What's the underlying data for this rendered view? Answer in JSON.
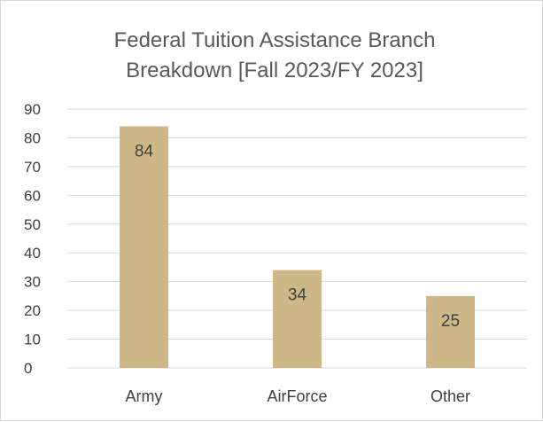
{
  "chart_data": {
    "type": "bar",
    "title_lines": [
      "Federal Tuition Assistance Branch",
      "Breakdown [Fall 2023/FY 2023]"
    ],
    "categories": [
      "Army",
      "AirForce",
      "Other"
    ],
    "values": [
      84,
      34,
      25
    ],
    "ylim": [
      0,
      90
    ],
    "y_ticks": [
      0,
      10,
      20,
      30,
      40,
      50,
      60,
      70,
      80,
      90
    ],
    "xlabel": "",
    "ylabel": "",
    "grid": true,
    "legend": "none",
    "bar_color": "#cfb887",
    "data_labels": true
  }
}
